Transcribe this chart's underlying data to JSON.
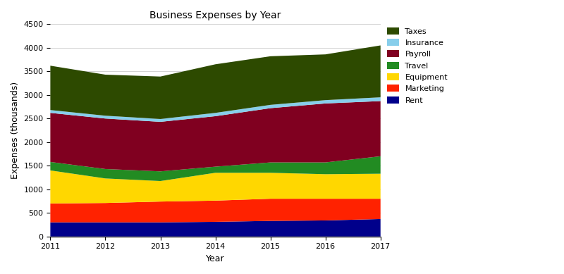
{
  "years": [
    2011,
    2012,
    2013,
    2014,
    2015,
    2016,
    2017
  ],
  "categories": [
    "Rent",
    "Marketing",
    "Equipment",
    "Travel",
    "Payroll",
    "Insurance",
    "Taxes"
  ],
  "colors": [
    "#00008B",
    "#FF2200",
    "#FFD700",
    "#228B22",
    "#800020",
    "#87CEEB",
    "#2D4A00"
  ],
  "data": {
    "Rent": [
      300,
      300,
      300,
      310,
      330,
      340,
      370
    ],
    "Marketing": [
      400,
      410,
      440,
      450,
      470,
      460,
      430
    ],
    "Equipment": [
      700,
      520,
      435,
      590,
      550,
      520,
      530
    ],
    "Travel": [
      180,
      200,
      205,
      130,
      220,
      250,
      370
    ],
    "Payroll": [
      1040,
      1070,
      1050,
      1070,
      1150,
      1250,
      1170
    ],
    "Insurance": [
      60,
      60,
      60,
      70,
      70,
      70,
      80
    ],
    "Taxes": [
      940,
      870,
      900,
      1030,
      1030,
      970,
      1100
    ]
  },
  "title": "Business Expenses by Year",
  "xlabel": "Year",
  "ylabel": "Expenses (thousands)",
  "ylim": [
    0,
    4500
  ],
  "yticks": [
    0,
    500,
    1000,
    1500,
    2000,
    2500,
    3000,
    3500,
    4000,
    4500
  ],
  "background_color": "#ffffff",
  "grid_color": "#cccccc",
  "legend_order_reversed": true
}
